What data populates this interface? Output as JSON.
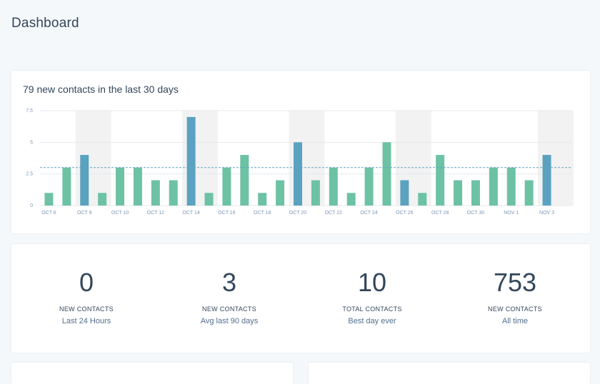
{
  "page": {
    "title": "Dashboard"
  },
  "contacts_chart": {
    "title": "79 new contacts in the last 30 days"
  },
  "chart_data": {
    "type": "bar",
    "title": "79 new contacts in the last 30 days",
    "categories": [
      "Oct 6",
      "Oct 7",
      "Oct 8",
      "Oct 9",
      "Oct 10",
      "Oct 11",
      "Oct 12",
      "Oct 13",
      "Oct 14",
      "Oct 15",
      "Oct 16",
      "Oct 17",
      "Oct 18",
      "Oct 19",
      "Oct 20",
      "Oct 21",
      "Oct 22",
      "Oct 23",
      "Oct 24",
      "Oct 25",
      "Oct 26",
      "Oct 27",
      "Oct 28",
      "Oct 29",
      "Oct 30",
      "Oct 31",
      "Nov 1",
      "Nov 2",
      "Nov 3"
    ],
    "tick_labels": [
      "OCT 6",
      "OCT 8",
      "OCT 10",
      "OCT 12",
      "OCT 14",
      "OCT 16",
      "OCT 18",
      "OCT 20",
      "OCT 22",
      "OCT 24",
      "OCT 26",
      "OCT 28",
      "OCT 30",
      "NOV 1",
      "NOV 3"
    ],
    "values": [
      1,
      3,
      4,
      1,
      3,
      3,
      2,
      2,
      7,
      1,
      3,
      4,
      1,
      2,
      5,
      2,
      3,
      1,
      3,
      5,
      2,
      1,
      4,
      2,
      2,
      3,
      3,
      2,
      4
    ],
    "weekend_highlight": [
      false,
      false,
      true,
      false,
      false,
      false,
      false,
      false,
      true,
      false,
      false,
      false,
      false,
      false,
      true,
      false,
      false,
      false,
      false,
      false,
      true,
      false,
      false,
      false,
      false,
      false,
      false,
      false,
      true
    ],
    "average": 3.0,
    "yticks": [
      "0",
      "2.5",
      "5",
      "7.5"
    ],
    "ylim": [
      0,
      7.5
    ],
    "grid": true,
    "colors": {
      "weekday": "#6dc2a4",
      "weekend": "#5aa2c0",
      "average_line": "#5aa2c0",
      "shade": "#f2f2f2"
    }
  },
  "stats": [
    {
      "value": "0",
      "label": "NEW CONTACTS",
      "sub": "Last 24 Hours"
    },
    {
      "value": "3",
      "label": "NEW CONTACTS",
      "sub": "Avg last 90 days"
    },
    {
      "value": "10",
      "label": "TOTAL CONTACTS",
      "sub": "Best day ever"
    },
    {
      "value": "753",
      "label": "NEW CONTACTS",
      "sub": "All time"
    }
  ]
}
